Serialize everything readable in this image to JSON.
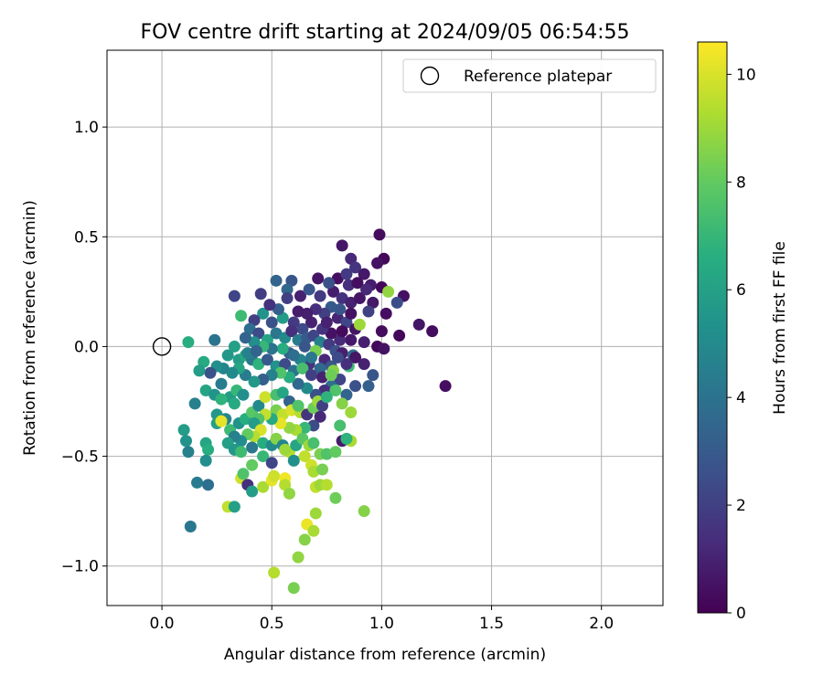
{
  "chart_data": {
    "type": "scatter",
    "title": "FOV centre drift starting at 2024/09/05 06:54:55",
    "xlabel": "Angular distance from reference (arcmin)",
    "ylabel": "Rotation from reference (arcmin)",
    "xlim": [
      -0.25,
      2.28
    ],
    "ylim": [
      -1.18,
      1.35
    ],
    "xticks": [
      0.0,
      0.5,
      1.0,
      1.5,
      2.0
    ],
    "xtick_labels": [
      "0.0",
      "0.5",
      "1.0",
      "1.5",
      "2.0"
    ],
    "yticks": [
      -1.0,
      -0.5,
      0.0,
      0.5,
      1.0
    ],
    "ytick_labels": [
      "−1.0",
      "−0.5",
      "0.0",
      "0.5",
      "1.0"
    ],
    "grid": true,
    "legend": {
      "position": "top-right",
      "label": "Reference platepar"
    },
    "reference_point": {
      "x": 0.0,
      "y": 0.0
    },
    "colorbar": {
      "label": "Hours from first FF file",
      "range": [
        0,
        10.6
      ],
      "ticks": [
        0,
        2,
        4,
        6,
        8,
        10
      ],
      "tick_labels": [
        "0",
        "2",
        "4",
        "6",
        "8",
        "10"
      ],
      "colormap": "viridis"
    },
    "points": [
      {
        "x": 0.99,
        "y": 0.51,
        "t": 0.3
      },
      {
        "x": 1.01,
        "y": 0.4,
        "t": 0.2
      },
      {
        "x": 0.82,
        "y": 0.46,
        "t": 0.6
      },
      {
        "x": 0.86,
        "y": 0.4,
        "t": 1.2
      },
      {
        "x": 0.98,
        "y": 0.38,
        "t": 0.5
      },
      {
        "x": 0.88,
        "y": 0.36,
        "t": 1.6
      },
      {
        "x": 0.92,
        "y": 0.33,
        "t": 0.7
      },
      {
        "x": 0.8,
        "y": 0.31,
        "t": 0.4
      },
      {
        "x": 0.85,
        "y": 0.28,
        "t": 1.4
      },
      {
        "x": 0.95,
        "y": 0.28,
        "t": 0.8
      },
      {
        "x": 1.0,
        "y": 0.27,
        "t": 0.2
      },
      {
        "x": 1.03,
        "y": 0.25,
        "t": 8.8
      },
      {
        "x": 1.1,
        "y": 0.23,
        "t": 0.5
      },
      {
        "x": 1.07,
        "y": 0.2,
        "t": 2.5
      },
      {
        "x": 1.02,
        "y": 0.15,
        "t": 0.4
      },
      {
        "x": 1.17,
        "y": 0.1,
        "t": 0.6
      },
      {
        "x": 1.23,
        "y": 0.07,
        "t": 0.3
      },
      {
        "x": 1.08,
        "y": 0.05,
        "t": 0.2
      },
      {
        "x": 1.0,
        "y": 0.07,
        "t": 0.3
      },
      {
        "x": 0.92,
        "y": 0.02,
        "t": 0.9
      },
      {
        "x": 0.98,
        "y": 0.0,
        "t": 0.2
      },
      {
        "x": 1.01,
        "y": -0.01,
        "t": 0.5
      },
      {
        "x": 1.29,
        "y": -0.18,
        "t": 0.4
      },
      {
        "x": 0.96,
        "y": -0.13,
        "t": 2.8
      },
      {
        "x": 0.94,
        "y": -0.18,
        "t": 3.2
      },
      {
        "x": 0.88,
        "y": -0.18,
        "t": 2.6
      },
      {
        "x": 0.84,
        "y": -0.22,
        "t": 3.4
      },
      {
        "x": 0.59,
        "y": 0.3,
        "t": 2.8
      },
      {
        "x": 0.52,
        "y": 0.3,
        "t": 3.4
      },
      {
        "x": 0.45,
        "y": 0.24,
        "t": 1.9
      },
      {
        "x": 0.33,
        "y": 0.23,
        "t": 2.2
      },
      {
        "x": 0.57,
        "y": 0.26,
        "t": 3.6
      },
      {
        "x": 0.63,
        "y": 0.23,
        "t": 1.0
      },
      {
        "x": 0.67,
        "y": 0.26,
        "t": 2.9
      },
      {
        "x": 0.72,
        "y": 0.23,
        "t": 1.8
      },
      {
        "x": 0.78,
        "y": 0.25,
        "t": 0.8
      },
      {
        "x": 0.82,
        "y": 0.22,
        "t": 1.5
      },
      {
        "x": 0.86,
        "y": 0.2,
        "t": 1.0
      },
      {
        "x": 0.9,
        "y": 0.22,
        "t": 0.6
      },
      {
        "x": 0.77,
        "y": 0.18,
        "t": 3.0
      },
      {
        "x": 0.74,
        "y": 0.15,
        "t": 2.0
      },
      {
        "x": 0.7,
        "y": 0.17,
        "t": 1.4
      },
      {
        "x": 0.8,
        "y": 0.13,
        "t": 1.1
      },
      {
        "x": 0.84,
        "y": 0.11,
        "t": 2.2
      },
      {
        "x": 0.88,
        "y": 0.08,
        "t": 0.6
      },
      {
        "x": 0.9,
        "y": 0.1,
        "t": 9.0
      },
      {
        "x": 0.86,
        "y": 0.03,
        "t": 0.7
      },
      {
        "x": 0.81,
        "y": 0.03,
        "t": 1.3
      },
      {
        "x": 0.77,
        "y": 0.06,
        "t": 0.5
      },
      {
        "x": 0.73,
        "y": 0.08,
        "t": 1.6
      },
      {
        "x": 0.68,
        "y": 0.11,
        "t": 1.0
      },
      {
        "x": 0.64,
        "y": 0.08,
        "t": 2.4
      },
      {
        "x": 0.6,
        "y": 0.11,
        "t": 1.8
      },
      {
        "x": 0.55,
        "y": 0.13,
        "t": 5.8
      },
      {
        "x": 0.5,
        "y": 0.11,
        "t": 2.6
      },
      {
        "x": 0.46,
        "y": 0.15,
        "t": 5.4
      },
      {
        "x": 0.42,
        "y": 0.12,
        "t": 2.0
      },
      {
        "x": 0.36,
        "y": 0.14,
        "t": 7.2
      },
      {
        "x": 0.4,
        "y": 0.08,
        "t": 3.8
      },
      {
        "x": 0.44,
        "y": 0.06,
        "t": 2.4
      },
      {
        "x": 0.48,
        "y": 0.03,
        "t": 6.2
      },
      {
        "x": 0.52,
        "y": 0.06,
        "t": 4.2
      },
      {
        "x": 0.56,
        "y": 0.04,
        "t": 5.0
      },
      {
        "x": 0.59,
        "y": 0.07,
        "t": 1.4
      },
      {
        "x": 0.62,
        "y": 0.03,
        "t": 4.4
      },
      {
        "x": 0.66,
        "y": 0.04,
        "t": 3.0
      },
      {
        "x": 0.69,
        "y": 0.05,
        "t": 2.2
      },
      {
        "x": 0.72,
        "y": 0.02,
        "t": 4.6
      },
      {
        "x": 0.76,
        "y": 0.01,
        "t": 1.8
      },
      {
        "x": 0.79,
        "y": -0.02,
        "t": 2.6
      },
      {
        "x": 0.82,
        "y": -0.03,
        "t": 0.9
      },
      {
        "x": 0.7,
        "y": -0.02,
        "t": 8.4
      },
      {
        "x": 0.74,
        "y": -0.06,
        "t": 1.2
      },
      {
        "x": 0.77,
        "y": -0.09,
        "t": 2.8
      },
      {
        "x": 0.72,
        "y": -0.1,
        "t": 3.6
      },
      {
        "x": 0.67,
        "y": -0.08,
        "t": 1.6
      },
      {
        "x": 0.63,
        "y": -0.06,
        "t": 4.8
      },
      {
        "x": 0.58,
        "y": -0.03,
        "t": 3.2
      },
      {
        "x": 0.55,
        "y": -0.01,
        "t": 6.6
      },
      {
        "x": 0.5,
        "y": -0.01,
        "t": 4.0
      },
      {
        "x": 0.46,
        "y": 0.0,
        "t": 7.0
      },
      {
        "x": 0.42,
        "y": 0.02,
        "t": 5.2
      },
      {
        "x": 0.38,
        "y": 0.04,
        "t": 3.4
      },
      {
        "x": 0.33,
        "y": 0.0,
        "t": 6.0
      },
      {
        "x": 0.3,
        "y": -0.04,
        "t": 5.6
      },
      {
        "x": 0.35,
        "y": -0.06,
        "t": 5.8
      },
      {
        "x": 0.38,
        "y": -0.04,
        "t": 6.4
      },
      {
        "x": 0.41,
        "y": -0.06,
        "t": 4.2
      },
      {
        "x": 0.44,
        "y": -0.08,
        "t": 6.8
      },
      {
        "x": 0.48,
        "y": -0.06,
        "t": 3.0
      },
      {
        "x": 0.52,
        "y": -0.09,
        "t": 5.4
      },
      {
        "x": 0.56,
        "y": -0.08,
        "t": 2.4
      },
      {
        "x": 0.6,
        "y": -0.11,
        "t": 4.0
      },
      {
        "x": 0.64,
        "y": -0.1,
        "t": 7.4
      },
      {
        "x": 0.68,
        "y": -0.13,
        "t": 2.0
      },
      {
        "x": 0.73,
        "y": -0.14,
        "t": 1.0
      },
      {
        "x": 0.78,
        "y": -0.11,
        "t": 8.6
      },
      {
        "x": 0.81,
        "y": -0.15,
        "t": 2.2
      },
      {
        "x": 0.77,
        "y": -0.18,
        "t": 3.8
      },
      {
        "x": 0.74,
        "y": -0.2,
        "t": 1.4
      },
      {
        "x": 0.7,
        "y": -0.22,
        "t": 2.6
      },
      {
        "x": 0.66,
        "y": -0.19,
        "t": 5.0
      },
      {
        "x": 0.62,
        "y": -0.17,
        "t": 3.6
      },
      {
        "x": 0.58,
        "y": -0.14,
        "t": 6.6
      },
      {
        "x": 0.54,
        "y": -0.12,
        "t": 7.6
      },
      {
        "x": 0.5,
        "y": -0.13,
        "t": 4.6
      },
      {
        "x": 0.46,
        "y": -0.15,
        "t": 3.2
      },
      {
        "x": 0.42,
        "y": -0.16,
        "t": 5.6
      },
      {
        "x": 0.38,
        "y": -0.13,
        "t": 4.4
      },
      {
        "x": 0.35,
        "y": -0.1,
        "t": 6.2
      },
      {
        "x": 0.32,
        "y": -0.12,
        "t": 5.0
      },
      {
        "x": 0.28,
        "y": -0.1,
        "t": 4.8
      },
      {
        "x": 0.25,
        "y": -0.09,
        "t": 5.2
      },
      {
        "x": 0.22,
        "y": -0.12,
        "t": 2.6
      },
      {
        "x": 0.19,
        "y": -0.07,
        "t": 6.4
      },
      {
        "x": 0.17,
        "y": -0.11,
        "t": 5.8
      },
      {
        "x": 0.24,
        "y": 0.03,
        "t": 4.0
      },
      {
        "x": 0.12,
        "y": 0.02,
        "t": 6.6
      },
      {
        "x": 0.15,
        "y": -0.26,
        "t": 4.6
      },
      {
        "x": 0.2,
        "y": -0.2,
        "t": 6.2
      },
      {
        "x": 0.24,
        "y": -0.22,
        "t": 5.4
      },
      {
        "x": 0.27,
        "y": -0.17,
        "t": 4.4
      },
      {
        "x": 0.31,
        "y": -0.23,
        "t": 5.8
      },
      {
        "x": 0.34,
        "y": -0.2,
        "t": 7.0
      },
      {
        "x": 0.37,
        "y": -0.22,
        "t": 5.2
      },
      {
        "x": 0.33,
        "y": -0.26,
        "t": 6.4
      },
      {
        "x": 0.27,
        "y": -0.24,
        "t": 6.8
      },
      {
        "x": 0.25,
        "y": -0.31,
        "t": 5.6
      },
      {
        "x": 0.29,
        "y": -0.33,
        "t": 4.8
      },
      {
        "x": 0.25,
        "y": -0.35,
        "t": 6.0
      },
      {
        "x": 0.27,
        "y": -0.34,
        "t": 10.2
      },
      {
        "x": 0.31,
        "y": -0.38,
        "t": 7.2
      },
      {
        "x": 0.35,
        "y": -0.35,
        "t": 5.4
      },
      {
        "x": 0.38,
        "y": -0.33,
        "t": 6.6
      },
      {
        "x": 0.41,
        "y": -0.3,
        "t": 7.8
      },
      {
        "x": 0.44,
        "y": -0.27,
        "t": 5.0
      },
      {
        "x": 0.47,
        "y": -0.23,
        "t": 9.8
      },
      {
        "x": 0.52,
        "y": -0.22,
        "t": 7.4
      },
      {
        "x": 0.55,
        "y": -0.21,
        "t": 6.2
      },
      {
        "x": 0.58,
        "y": -0.25,
        "t": 3.4
      },
      {
        "x": 0.52,
        "y": -0.29,
        "t": 8.4
      },
      {
        "x": 0.55,
        "y": -0.31,
        "t": 9.6
      },
      {
        "x": 0.59,
        "y": -0.29,
        "t": 10.0
      },
      {
        "x": 0.63,
        "y": -0.3,
        "t": 9.4
      },
      {
        "x": 0.62,
        "y": -0.27,
        "t": 7.6
      },
      {
        "x": 0.66,
        "y": -0.31,
        "t": 1.6
      },
      {
        "x": 0.69,
        "y": -0.28,
        "t": 8.2
      },
      {
        "x": 0.71,
        "y": -0.25,
        "t": 9.0
      },
      {
        "x": 0.73,
        "y": -0.27,
        "t": 2.0
      },
      {
        "x": 0.72,
        "y": -0.32,
        "t": 1.2
      },
      {
        "x": 0.69,
        "y": -0.36,
        "t": 2.4
      },
      {
        "x": 0.65,
        "y": -0.37,
        "t": 7.0
      },
      {
        "x": 0.61,
        "y": -0.38,
        "t": 9.2
      },
      {
        "x": 0.58,
        "y": -0.37,
        "t": 8.8
      },
      {
        "x": 0.54,
        "y": -0.35,
        "t": 10.2
      },
      {
        "x": 0.5,
        "y": -0.33,
        "t": 6.4
      },
      {
        "x": 0.47,
        "y": -0.31,
        "t": 9.6
      },
      {
        "x": 0.44,
        "y": -0.33,
        "t": 7.6
      },
      {
        "x": 0.42,
        "y": -0.35,
        "t": 5.8
      },
      {
        "x": 0.45,
        "y": -0.38,
        "t": 10.0
      },
      {
        "x": 0.42,
        "y": -0.41,
        "t": 9.4
      },
      {
        "x": 0.39,
        "y": -0.4,
        "t": 8.0
      },
      {
        "x": 0.36,
        "y": -0.43,
        "t": 5.2
      },
      {
        "x": 0.33,
        "y": -0.41,
        "t": 4.6
      },
      {
        "x": 0.3,
        "y": -0.44,
        "t": 6.0
      },
      {
        "x": 0.33,
        "y": -0.47,
        "t": 5.6
      },
      {
        "x": 0.36,
        "y": -0.48,
        "t": 7.2
      },
      {
        "x": 0.41,
        "y": -0.46,
        "t": 4.2
      },
      {
        "x": 0.46,
        "y": -0.44,
        "t": 6.6
      },
      {
        "x": 0.5,
        "y": -0.45,
        "t": 5.0
      },
      {
        "x": 0.52,
        "y": -0.42,
        "t": 8.6
      },
      {
        "x": 0.55,
        "y": -0.45,
        "t": 4.8
      },
      {
        "x": 0.58,
        "y": -0.48,
        "t": 9.4
      },
      {
        "x": 0.61,
        "y": -0.45,
        "t": 6.2
      },
      {
        "x": 0.64,
        "y": -0.42,
        "t": 7.8
      },
      {
        "x": 0.67,
        "y": -0.45,
        "t": 9.0
      },
      {
        "x": 0.69,
        "y": -0.44,
        "t": 7.4
      },
      {
        "x": 0.72,
        "y": -0.49,
        "t": 8.4
      },
      {
        "x": 0.75,
        "y": -0.49,
        "t": 7.6
      },
      {
        "x": 0.79,
        "y": -0.48,
        "t": 8.0
      },
      {
        "x": 0.82,
        "y": -0.43,
        "t": 0.8
      },
      {
        "x": 0.86,
        "y": -0.43,
        "t": 9.2
      },
      {
        "x": 0.84,
        "y": -0.42,
        "t": 6.8
      },
      {
        "x": 0.81,
        "y": -0.36,
        "t": 7.4
      },
      {
        "x": 0.86,
        "y": -0.3,
        "t": 9.0
      },
      {
        "x": 0.82,
        "y": -0.26,
        "t": 8.6
      },
      {
        "x": 0.79,
        "y": -0.2,
        "t": 7.6
      },
      {
        "x": 0.75,
        "y": -0.23,
        "t": 6.8
      },
      {
        "x": 0.77,
        "y": -0.13,
        "t": 8.2
      },
      {
        "x": 0.85,
        "y": -0.09,
        "t": 7.2
      },
      {
        "x": 0.87,
        "y": -0.04,
        "t": 3.6
      },
      {
        "x": 0.1,
        "y": -0.38,
        "t": 5.8
      },
      {
        "x": 0.11,
        "y": -0.43,
        "t": 5.4
      },
      {
        "x": 0.12,
        "y": -0.48,
        "t": 4.6
      },
      {
        "x": 0.2,
        "y": -0.44,
        "t": 6.2
      },
      {
        "x": 0.21,
        "y": -0.47,
        "t": 6.6
      },
      {
        "x": 0.2,
        "y": -0.52,
        "t": 5.2
      },
      {
        "x": 0.16,
        "y": -0.62,
        "t": 4.4
      },
      {
        "x": 0.21,
        "y": -0.63,
        "t": 3.8
      },
      {
        "x": 0.13,
        "y": -0.82,
        "t": 4.2
      },
      {
        "x": 0.3,
        "y": -0.73,
        "t": 9.6
      },
      {
        "x": 0.33,
        "y": -0.73,
        "t": 6.0
      },
      {
        "x": 0.36,
        "y": -0.6,
        "t": 9.8
      },
      {
        "x": 0.37,
        "y": -0.58,
        "t": 7.6
      },
      {
        "x": 0.39,
        "y": -0.63,
        "t": 1.4
      },
      {
        "x": 0.41,
        "y": -0.54,
        "t": 8.0
      },
      {
        "x": 0.41,
        "y": -0.66,
        "t": 5.8
      },
      {
        "x": 0.46,
        "y": -0.64,
        "t": 9.2
      },
      {
        "x": 0.46,
        "y": -0.5,
        "t": 7.0
      },
      {
        "x": 0.5,
        "y": -0.53,
        "t": 2.2
      },
      {
        "x": 0.5,
        "y": -0.61,
        "t": 10.2
      },
      {
        "x": 0.51,
        "y": -0.59,
        "t": 9.8
      },
      {
        "x": 0.56,
        "y": -0.6,
        "t": 10.4
      },
      {
        "x": 0.56,
        "y": -0.63,
        "t": 9.4
      },
      {
        "x": 0.58,
        "y": -0.67,
        "t": 8.8
      },
      {
        "x": 0.56,
        "y": -0.47,
        "t": 9.0
      },
      {
        "x": 0.6,
        "y": -0.52,
        "t": 5.2
      },
      {
        "x": 0.65,
        "y": -0.5,
        "t": 9.6
      },
      {
        "x": 0.68,
        "y": -0.54,
        "t": 9.8
      },
      {
        "x": 0.69,
        "y": -0.57,
        "t": 9.2
      },
      {
        "x": 0.73,
        "y": -0.56,
        "t": 8.4
      },
      {
        "x": 0.7,
        "y": -0.64,
        "t": 9.6
      },
      {
        "x": 0.72,
        "y": -0.63,
        "t": 9.0
      },
      {
        "x": 0.75,
        "y": -0.63,
        "t": 9.4
      },
      {
        "x": 0.79,
        "y": -0.69,
        "t": 8.2
      },
      {
        "x": 0.7,
        "y": -0.76,
        "t": 9.0
      },
      {
        "x": 0.66,
        "y": -0.81,
        "t": 10.3
      },
      {
        "x": 0.69,
        "y": -0.84,
        "t": 9.2
      },
      {
        "x": 0.65,
        "y": -0.88,
        "t": 8.6
      },
      {
        "x": 0.62,
        "y": -0.96,
        "t": 8.8
      },
      {
        "x": 0.51,
        "y": -1.03,
        "t": 9.4
      },
      {
        "x": 0.6,
        "y": -1.1,
        "t": 8.4
      },
      {
        "x": 0.92,
        "y": -0.75,
        "t": 8.6
      },
      {
        "x": 0.39,
        "y": -0.03,
        "t": 4.6
      },
      {
        "x": 0.43,
        "y": -0.02,
        "t": 3.4
      },
      {
        "x": 0.66,
        "y": 0.15,
        "t": 0.9
      },
      {
        "x": 0.71,
        "y": 0.31,
        "t": 0.6
      },
      {
        "x": 0.76,
        "y": 0.29,
        "t": 2.6
      },
      {
        "x": 0.84,
        "y": 0.33,
        "t": 1.8
      },
      {
        "x": 0.89,
        "y": 0.29,
        "t": 0.4
      },
      {
        "x": 0.93,
        "y": 0.26,
        "t": 1.2
      },
      {
        "x": 0.96,
        "y": 0.2,
        "t": 0.7
      },
      {
        "x": 0.94,
        "y": 0.16,
        "t": 2.0
      },
      {
        "x": 0.86,
        "y": 0.15,
        "t": 0.5
      },
      {
        "x": 0.81,
        "y": 0.17,
        "t": 2.8
      },
      {
        "x": 0.75,
        "y": 0.11,
        "t": 1.0
      },
      {
        "x": 0.62,
        "y": 0.16,
        "t": 0.8
      },
      {
        "x": 0.53,
        "y": 0.17,
        "t": 3.2
      },
      {
        "x": 0.49,
        "y": 0.19,
        "t": 1.5
      },
      {
        "x": 0.57,
        "y": 0.22,
        "t": 2.0
      },
      {
        "x": 0.82,
        "y": 0.07,
        "t": 0.3
      },
      {
        "x": 0.88,
        "y": -0.05,
        "t": 0.6
      },
      {
        "x": 0.84,
        "y": -0.08,
        "t": 1.4
      },
      {
        "x": 0.8,
        "y": -0.05,
        "t": 2.4
      },
      {
        "x": 0.92,
        "y": -0.08,
        "t": 1.0
      },
      {
        "x": 0.6,
        "y": -0.04,
        "t": 3.8
      },
      {
        "x": 0.65,
        "y": 0.0,
        "t": 2.8
      },
      {
        "x": 0.68,
        "y": -0.05,
        "t": 4.2
      }
    ]
  }
}
